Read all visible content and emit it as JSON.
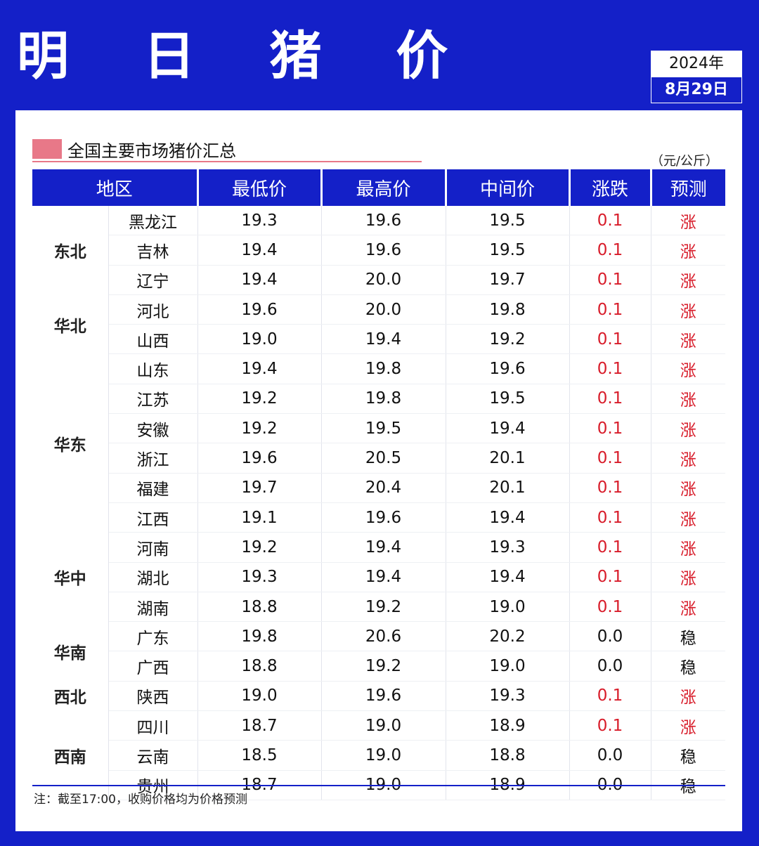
{
  "header": {
    "title": "明 日 猪 价",
    "year": "2024年",
    "date": "8月29日"
  },
  "section": {
    "title": "全国主要市场猪价汇总",
    "unit": "（元/公斤）"
  },
  "table": {
    "headers": [
      "地区",
      "最低价",
      "最高价",
      "中间价",
      "涨跌",
      "预测"
    ],
    "regions": [
      {
        "name": "东北",
        "rows": [
          {
            "province": "黑龙江",
            "low": "19.3",
            "high": "19.6",
            "mid": "19.5",
            "change": "0.1",
            "forecast": "涨"
          },
          {
            "province": "吉林",
            "low": "19.4",
            "high": "19.6",
            "mid": "19.5",
            "change": "0.1",
            "forecast": "涨"
          },
          {
            "province": "辽宁",
            "low": "19.4",
            "high": "20.0",
            "mid": "19.7",
            "change": "0.1",
            "forecast": "涨"
          }
        ]
      },
      {
        "name": "华北",
        "rows": [
          {
            "province": "河北",
            "low": "19.6",
            "high": "20.0",
            "mid": "19.8",
            "change": "0.1",
            "forecast": "涨"
          },
          {
            "province": "山西",
            "low": "19.0",
            "high": "19.4",
            "mid": "19.2",
            "change": "0.1",
            "forecast": "涨"
          }
        ]
      },
      {
        "name": "华东",
        "rows": [
          {
            "province": "山东",
            "low": "19.4",
            "high": "19.8",
            "mid": "19.6",
            "change": "0.1",
            "forecast": "涨"
          },
          {
            "province": "江苏",
            "low": "19.2",
            "high": "19.8",
            "mid": "19.5",
            "change": "0.1",
            "forecast": "涨"
          },
          {
            "province": "安徽",
            "low": "19.2",
            "high": "19.5",
            "mid": "19.4",
            "change": "0.1",
            "forecast": "涨"
          },
          {
            "province": "浙江",
            "low": "19.6",
            "high": "20.5",
            "mid": "20.1",
            "change": "0.1",
            "forecast": "涨"
          },
          {
            "province": "福建",
            "low": "19.7",
            "high": "20.4",
            "mid": "20.1",
            "change": "0.1",
            "forecast": "涨"
          },
          {
            "province": "江西",
            "low": "19.1",
            "high": "19.6",
            "mid": "19.4",
            "change": "0.1",
            "forecast": "涨"
          }
        ]
      },
      {
        "name": "华中",
        "rows": [
          {
            "province": "河南",
            "low": "19.2",
            "high": "19.4",
            "mid": "19.3",
            "change": "0.1",
            "forecast": "涨"
          },
          {
            "province": "湖北",
            "low": "19.3",
            "high": "19.4",
            "mid": "19.4",
            "change": "0.1",
            "forecast": "涨"
          },
          {
            "province": "湖南",
            "low": "18.8",
            "high": "19.2",
            "mid": "19.0",
            "change": "0.1",
            "forecast": "涨"
          }
        ]
      },
      {
        "name": "华南",
        "rows": [
          {
            "province": "广东",
            "low": "19.8",
            "high": "20.6",
            "mid": "20.2",
            "change": "0.0",
            "forecast": "稳"
          },
          {
            "province": "广西",
            "low": "18.8",
            "high": "19.2",
            "mid": "19.0",
            "change": "0.0",
            "forecast": "稳"
          }
        ]
      },
      {
        "name": "西北",
        "rows": [
          {
            "province": "陕西",
            "low": "19.0",
            "high": "19.6",
            "mid": "19.3",
            "change": "0.1",
            "forecast": "涨"
          }
        ]
      },
      {
        "name": "西南",
        "rows": [
          {
            "province": "四川",
            "low": "18.7",
            "high": "19.0",
            "mid": "18.9",
            "change": "0.1",
            "forecast": "涨"
          },
          {
            "province": "云南",
            "low": "18.5",
            "high": "19.0",
            "mid": "18.8",
            "change": "0.0",
            "forecast": "稳"
          },
          {
            "province": "贵州",
            "low": "18.7",
            "high": "19.0",
            "mid": "18.9",
            "change": "0.0",
            "forecast": "稳"
          }
        ]
      }
    ]
  },
  "note": "注：截至17:00，收购价格均为价格预测",
  "colors": {
    "brand_blue": "#1420c8",
    "rise_red": "#d81c2a",
    "accent_pink": "#e87888"
  }
}
